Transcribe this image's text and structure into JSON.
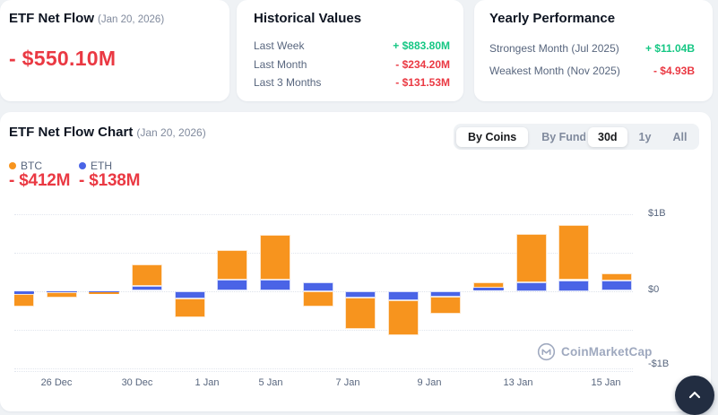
{
  "summary_card": {
    "title": "ETF Net Flow",
    "date": "(Jan 20, 2026)",
    "value": "- $550.10M"
  },
  "historical_card": {
    "title": "Historical Values",
    "rows": [
      {
        "label": "Last Week",
        "value": "+ $883.80M",
        "direction": "up"
      },
      {
        "label": "Last Month",
        "value": "- $234.20M",
        "direction": "down"
      },
      {
        "label": "Last 3 Months",
        "value": "- $131.53M",
        "direction": "down"
      }
    ]
  },
  "yearly_card": {
    "title": "Yearly Performance",
    "rows": [
      {
        "label": "Strongest Month (Jul 2025)",
        "value": "+ $11.04B",
        "direction": "up"
      },
      {
        "label": "Weakest Month (Nov 2025)",
        "value": "- $4.93B",
        "direction": "down"
      }
    ]
  },
  "chart_panel": {
    "title": "ETF Net Flow Chart",
    "date": "(Jan 20, 2026)",
    "view_toggle": [
      {
        "label": "By Coins",
        "active": true
      },
      {
        "label": "By Funds",
        "active": false
      }
    ],
    "range_toggle": [
      {
        "label": "30d",
        "active": true
      },
      {
        "label": "1y",
        "active": false
      },
      {
        "label": "All",
        "active": false
      }
    ],
    "legend": [
      {
        "name": "BTC",
        "color": "#f7941e",
        "value": "- $412M"
      },
      {
        "name": "ETH",
        "color": "#4a64e6",
        "value": "- $138M"
      }
    ],
    "watermark": "CoinMarketCap"
  },
  "chart_data": {
    "type": "bar",
    "stacked": true,
    "unit": "$M (USD millions, values estimated from gridlines)",
    "categories": [
      "26 Dec",
      "",
      "30 Dec",
      "",
      "1 Jan",
      "",
      "5 Jan",
      "",
      "7 Jan",
      "",
      "9 Jan",
      "",
      "13 Jan",
      "",
      "15 Jan"
    ],
    "series": [
      {
        "name": "BTC",
        "color": "#f7941e",
        "values": [
          -170,
          -70,
          -20,
          280,
          -240,
          380,
          580,
          -200,
          -400,
          -460,
          -220,
          70,
          630,
          710,
          100
        ]
      },
      {
        "name": "ETH",
        "color": "#4a64e6",
        "values": [
          -40,
          -20,
          -5,
          60,
          -100,
          150,
          150,
          110,
          -90,
          -120,
          -80,
          40,
          110,
          140,
          130
        ]
      }
    ],
    "stack_order": [
      "ETH",
      "BTC"
    ],
    "x_tick_labels": [
      "26 Dec",
      "30 Dec",
      "1 Jan",
      "5 Jan",
      "7 Jan",
      "9 Jan",
      "13 Jan",
      "15 Jan"
    ],
    "y_axis": {
      "labels": [
        "$1B",
        "$0",
        "-$1B"
      ],
      "min_M": -1000,
      "max_M": 1000,
      "gridlines_M": [
        1000,
        500,
        0,
        -500,
        -1000
      ],
      "grid": "dotted",
      "position": "right"
    },
    "legend_position": "top-left"
  },
  "colors": {
    "btc": "#f7941e",
    "eth": "#4a64e6",
    "negative": "#ea3943",
    "positive": "#16c784",
    "page_bg": "#eff2f5"
  },
  "scroll_button": {
    "icon": "chevron-up"
  }
}
